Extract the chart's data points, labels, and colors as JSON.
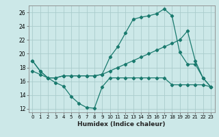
{
  "xlabel": "Humidex (Indice chaleur)",
  "background_color": "#cce8e8",
  "grid_color": "#aacccc",
  "line_color": "#1a7a6e",
  "xlim": [
    -0.5,
    23.5
  ],
  "ylim": [
    11.5,
    27.0
  ],
  "xticks": [
    0,
    1,
    2,
    3,
    4,
    5,
    6,
    7,
    8,
    9,
    10,
    11,
    12,
    13,
    14,
    15,
    16,
    17,
    18,
    19,
    20,
    21,
    22,
    23
  ],
  "yticks": [
    12,
    14,
    16,
    18,
    20,
    22,
    24,
    26
  ],
  "series1_x": [
    0,
    1,
    2,
    3,
    4,
    5,
    6,
    7,
    8,
    9,
    10,
    11,
    12,
    13,
    14,
    15,
    16,
    17,
    18,
    19,
    20,
    21,
    22,
    23
  ],
  "series1_y": [
    19.0,
    17.5,
    16.5,
    15.8,
    15.3,
    13.8,
    12.8,
    12.2,
    12.1,
    15.2,
    16.5,
    16.5,
    16.5,
    16.5,
    16.5,
    16.5,
    16.5,
    16.5,
    15.5,
    15.5,
    15.5,
    15.5,
    15.5,
    15.2
  ],
  "series2_x": [
    0,
    1,
    2,
    3,
    4,
    5,
    6,
    7,
    8,
    9,
    10,
    11,
    12,
    13,
    14,
    15,
    16,
    17,
    18,
    19,
    20,
    21,
    22,
    23
  ],
  "series2_y": [
    17.5,
    17.0,
    16.5,
    16.5,
    16.8,
    16.8,
    16.8,
    16.8,
    16.8,
    17.0,
    17.5,
    18.0,
    18.5,
    19.0,
    19.5,
    20.0,
    20.5,
    21.0,
    21.5,
    22.0,
    23.3,
    19.0,
    16.5,
    15.2
  ],
  "series3_x": [
    0,
    1,
    2,
    3,
    4,
    5,
    6,
    7,
    8,
    9,
    10,
    11,
    12,
    13,
    14,
    15,
    16,
    17,
    18,
    19,
    20,
    21,
    22,
    23
  ],
  "series3_y": [
    19.0,
    17.5,
    16.5,
    16.5,
    16.8,
    16.8,
    16.8,
    16.8,
    16.8,
    17.0,
    19.5,
    21.0,
    23.0,
    25.0,
    25.3,
    25.5,
    25.8,
    26.5,
    25.5,
    20.2,
    18.5,
    18.5,
    16.5,
    15.2
  ]
}
